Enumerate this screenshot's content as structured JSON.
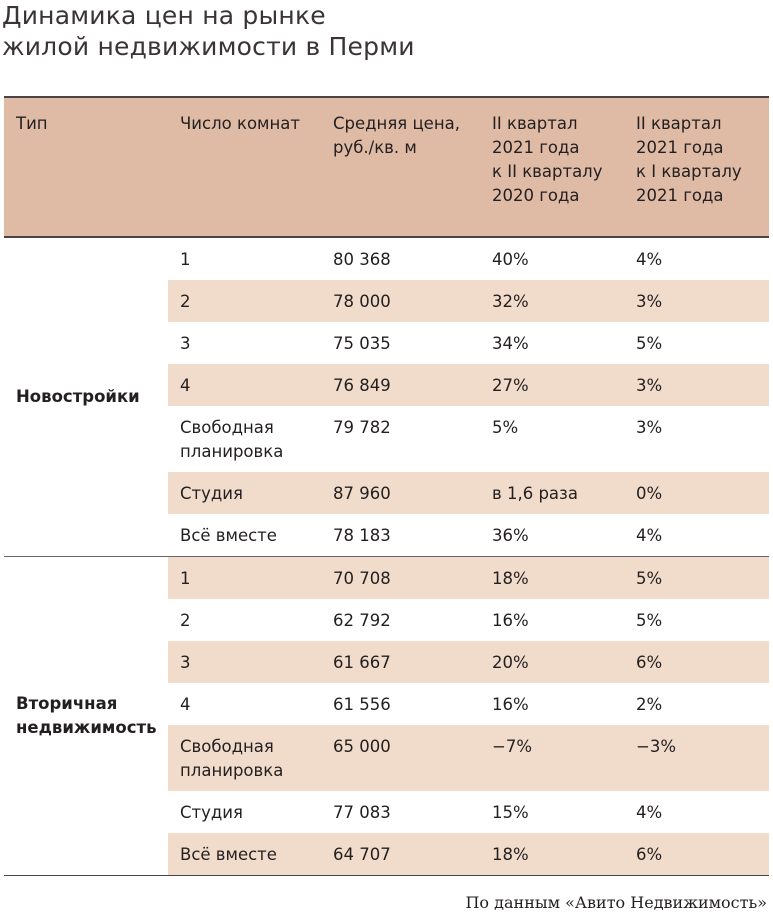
{
  "title": [
    "Динамика цен на рынке",
    "жилой недвижимости в Перми"
  ],
  "headers": [
    "Тип",
    "Число комнат",
    "Средняя цена,\nруб./кв. м",
    "II квартал\n2021 года\nк II кварталу\n2020 года",
    "II квартал\n2021 года\nк I кварталу\n2021 года"
  ],
  "groups": [
    {
      "type": "Новостройки",
      "rows": [
        {
          "rooms": "1",
          "price": "80 368",
          "yoy": "40%",
          "qoq": "4%",
          "shaded": false
        },
        {
          "rooms": "2",
          "price": "78 000",
          "yoy": "32%",
          "qoq": "3%",
          "shaded": true
        },
        {
          "rooms": "3",
          "price": "75 035",
          "yoy": "34%",
          "qoq": "5%",
          "shaded": false
        },
        {
          "rooms": "4",
          "price": "76 849",
          "yoy": "27%",
          "qoq": "3%",
          "shaded": true
        },
        {
          "rooms": "Свободная\nпланировка",
          "price": "79 782",
          "yoy": "5%",
          "qoq": "3%",
          "shaded": false
        },
        {
          "rooms": "Студия",
          "price": "87 960",
          "yoy": "в 1,6 раза",
          "qoq": "0%",
          "shaded": true
        },
        {
          "rooms": "Всё вместе",
          "price": "78 183",
          "yoy": "36%",
          "qoq": "4%",
          "shaded": false
        }
      ]
    },
    {
      "type": "Вторичная\nнедвижимость",
      "rows": [
        {
          "rooms": "1",
          "price": "70 708",
          "yoy": "18%",
          "qoq": "5%",
          "shaded": true
        },
        {
          "rooms": "2",
          "price": "62 792",
          "yoy": "16%",
          "qoq": "5%",
          "shaded": false
        },
        {
          "rooms": "3",
          "price": "61 667",
          "yoy": "20%",
          "qoq": "6%",
          "shaded": true
        },
        {
          "rooms": "4",
          "price": "61 556",
          "yoy": "16%",
          "qoq": "2%",
          "shaded": false
        },
        {
          "rooms": "Свободная\nпланировка",
          "price": "65 000",
          "yoy": "−7%",
          "qoq": "−3%",
          "shaded": true
        },
        {
          "rooms": "Студия",
          "price": "77 083",
          "yoy": "15%",
          "qoq": "4%",
          "shaded": false
        },
        {
          "rooms": "Всё вместе",
          "price": "64 707",
          "yoy": "18%",
          "qoq": "6%",
          "shaded": true
        }
      ]
    }
  ],
  "source": "По данным «Авито Недвижимость»"
}
